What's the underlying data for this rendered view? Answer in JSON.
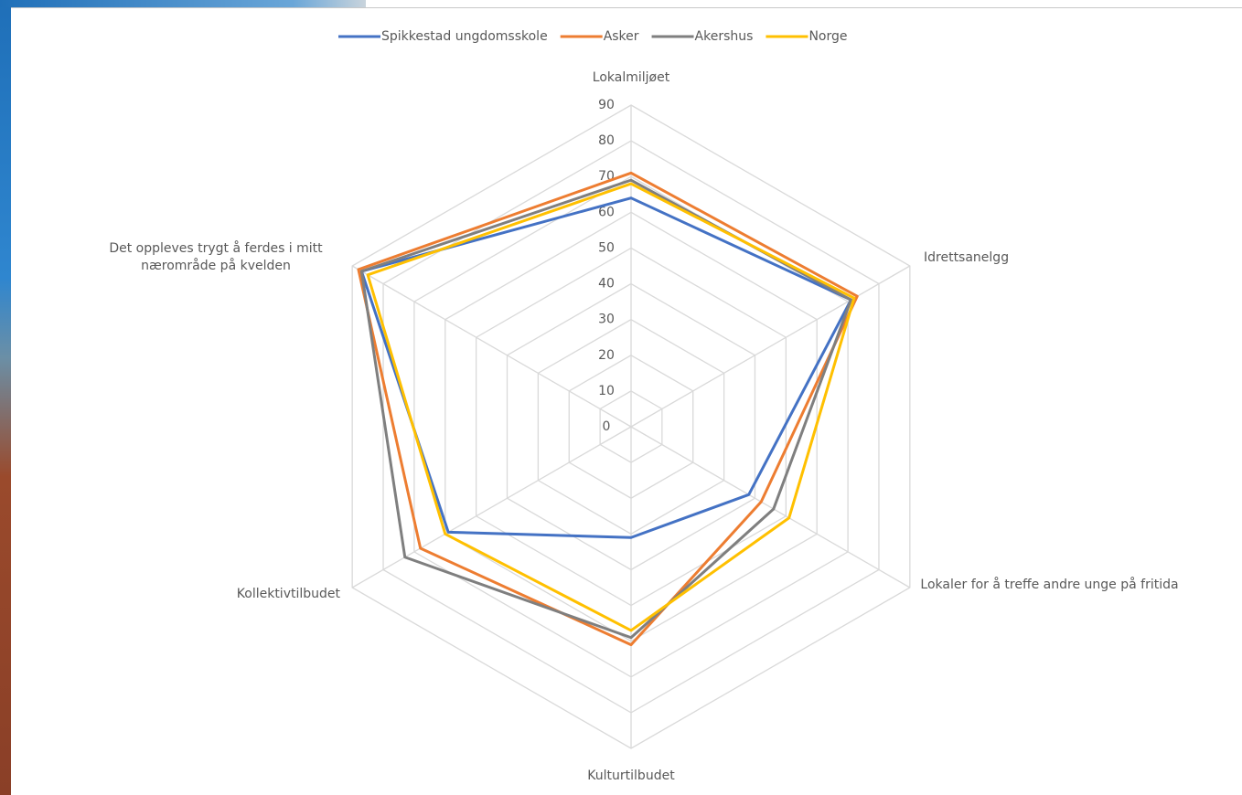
{
  "chart_data": {
    "type": "radar",
    "categories": [
      "Lokalmiljøet",
      "Idrettsanelgg",
      "Lokaler for å treffe andre unge på fritida",
      "Kulturtilbudet",
      "Kollektivtilbudet",
      "Det oppleves trygt å ferdes i mitt nærområde på kvelden"
    ],
    "series": [
      {
        "name": "Spikkestad ungdomsskole",
        "color": "#4472c4",
        "values": [
          64,
          71,
          38,
          31,
          59,
          87
        ]
      },
      {
        "name": "Asker",
        "color": "#ed7d31",
        "values": [
          71,
          73,
          42,
          61,
          68,
          88
        ]
      },
      {
        "name": "Akershus",
        "color": "#7f7f7f",
        "values": [
          69,
          71,
          46,
          59,
          73,
          87
        ]
      },
      {
        "name": "Norge",
        "color": "#ffc000",
        "values": [
          68,
          72,
          51,
          57,
          60,
          85
        ]
      }
    ],
    "ylim": [
      0,
      90
    ],
    "yticks": [
      0,
      10,
      20,
      30,
      40,
      50,
      60,
      70,
      80,
      90
    ],
    "grid": true,
    "legend": "top"
  }
}
